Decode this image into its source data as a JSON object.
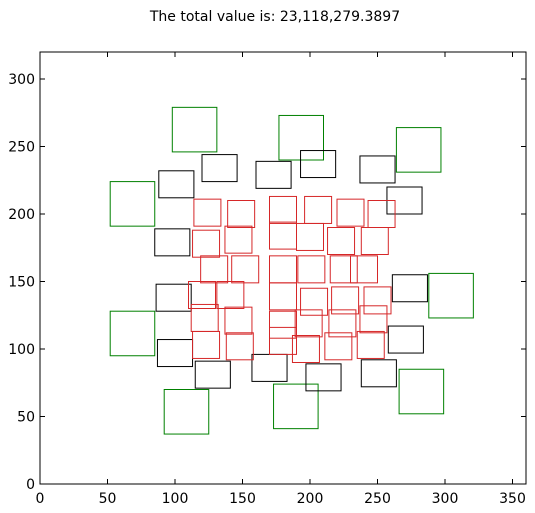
{
  "chart_data": {
    "type": "scatter",
    "title": "The total value is: 23,118,279.3897",
    "xlabel": "",
    "ylabel": "",
    "xlim": [
      0,
      360
    ],
    "ylim": [
      0,
      320
    ],
    "xticks": [
      0,
      50,
      100,
      150,
      200,
      250,
      300,
      350
    ],
    "yticks": [
      0,
      50,
      100,
      150,
      200,
      250,
      300
    ],
    "grid": false,
    "colors": {
      "red": "#d62728",
      "black": "#000000",
      "green": "#008000"
    },
    "boxes": {
      "red": [
        [
          114,
          191,
          20,
          20
        ],
        [
          139,
          190,
          20,
          20
        ],
        [
          170,
          193,
          20,
          20
        ],
        [
          196,
          193,
          20,
          20
        ],
        [
          220,
          191,
          20,
          20
        ],
        [
          243,
          190,
          20,
          20
        ],
        [
          113,
          168,
          20,
          20
        ],
        [
          137,
          171,
          20,
          20
        ],
        [
          170,
          174,
          20,
          20
        ],
        [
          190,
          173,
          20,
          20
        ],
        [
          213,
          170,
          20,
          20
        ],
        [
          238,
          170,
          20,
          20
        ],
        [
          119,
          149,
          20,
          20
        ],
        [
          142,
          149,
          20,
          20
        ],
        [
          170,
          149,
          20,
          20
        ],
        [
          191,
          149,
          20,
          20
        ],
        [
          215,
          149,
          20,
          20
        ],
        [
          230,
          149,
          20,
          20
        ],
        [
          110,
          130,
          20,
          20
        ],
        [
          131,
          130,
          20,
          20
        ],
        [
          170,
          129,
          20,
          20
        ],
        [
          193,
          125,
          20,
          20
        ],
        [
          216,
          126,
          20,
          20
        ],
        [
          240,
          126,
          20,
          20
        ],
        [
          112,
          113,
          20,
          20
        ],
        [
          137,
          111,
          20,
          20
        ],
        [
          170,
          108,
          20,
          20
        ],
        [
          189,
          109,
          20,
          20
        ],
        [
          214,
          109,
          20,
          20
        ],
        [
          237,
          112,
          20,
          20
        ],
        [
          113,
          93,
          20,
          20
        ],
        [
          138,
          92,
          20,
          20
        ],
        [
          170,
          96,
          20,
          20
        ],
        [
          187,
          90,
          20,
          20
        ],
        [
          211,
          92,
          20,
          20
        ],
        [
          235,
          93,
          20,
          20
        ]
      ],
      "black": [
        [
          88,
          212,
          26,
          20
        ],
        [
          120,
          224,
          26,
          20
        ],
        [
          160,
          219,
          26,
          20
        ],
        [
          193,
          227,
          26,
          20
        ],
        [
          237,
          223,
          26,
          20
        ],
        [
          257,
          200,
          26,
          20
        ],
        [
          85,
          169,
          26,
          20
        ],
        [
          86,
          128,
          26,
          20
        ],
        [
          261,
          135,
          26,
          20
        ],
        [
          258,
          97,
          26,
          20
        ],
        [
          87,
          87,
          26,
          20
        ],
        [
          115,
          71,
          26,
          20
        ],
        [
          157,
          76,
          26,
          20
        ],
        [
          197,
          69,
          26,
          20
        ],
        [
          238,
          72,
          26,
          20
        ]
      ],
      "green": [
        [
          52,
          191,
          33,
          33
        ],
        [
          98,
          246,
          33,
          33
        ],
        [
          177,
          240,
          33,
          33
        ],
        [
          264,
          231,
          33,
          33
        ],
        [
          288,
          123,
          33,
          33
        ],
        [
          52,
          95,
          33,
          33
        ],
        [
          92,
          37,
          33,
          33
        ],
        [
          173,
          41,
          33,
          33
        ],
        [
          266,
          52,
          33,
          33
        ]
      ]
    }
  }
}
